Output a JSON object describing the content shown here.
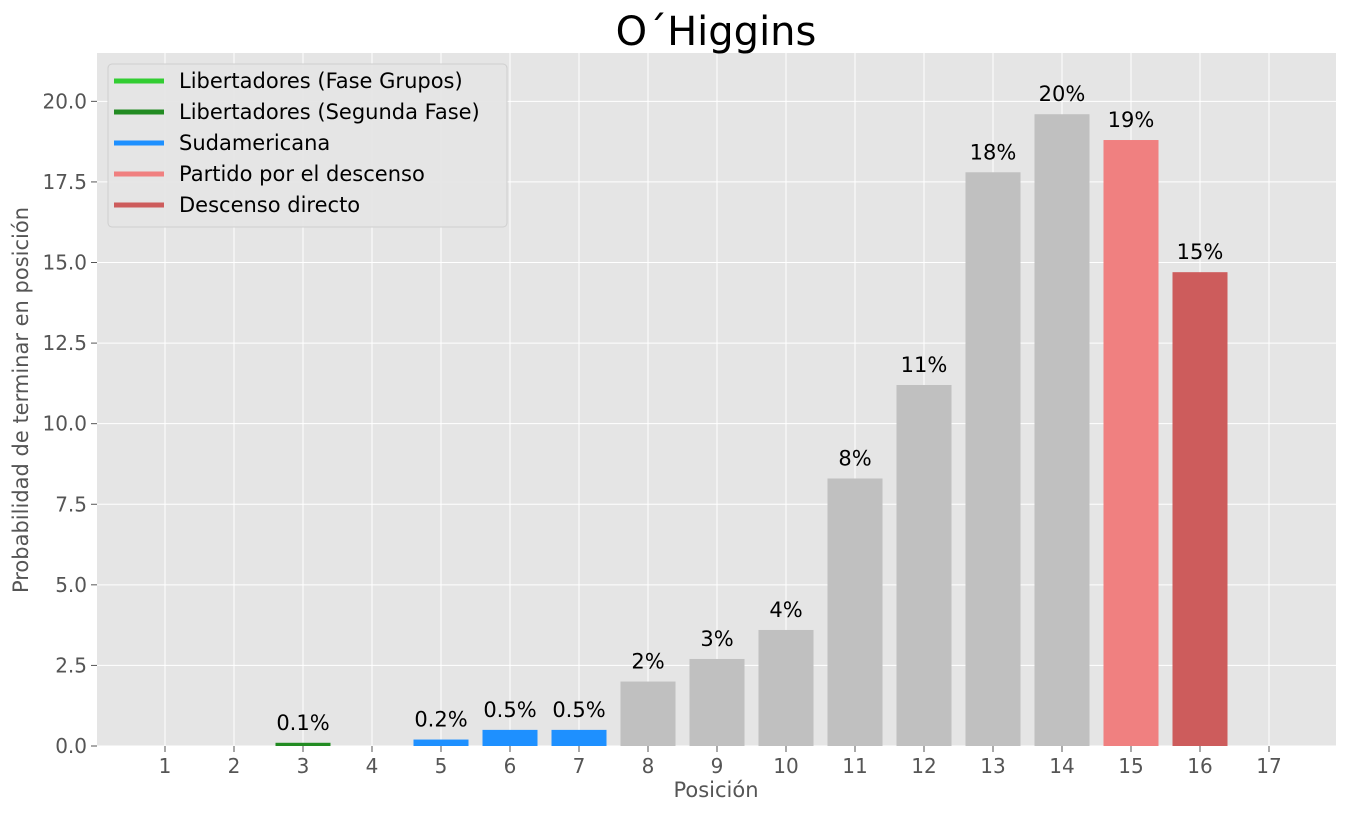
{
  "chart_data": {
    "type": "bar",
    "title": "O´Higgins",
    "xlabel": "Posición",
    "ylabel": "Probabilidad de terminar en posición",
    "categories": [
      "1",
      "2",
      "3",
      "4",
      "5",
      "6",
      "7",
      "8",
      "9",
      "10",
      "11",
      "12",
      "13",
      "14",
      "15",
      "16",
      "17"
    ],
    "values": [
      0,
      0,
      0.1,
      0,
      0.2,
      0.5,
      0.5,
      2.0,
      2.7,
      3.6,
      8.3,
      11.2,
      17.8,
      19.6,
      18.8,
      14.7,
      0
    ],
    "bar_labels": [
      "",
      "",
      "0.1%",
      "",
      "0.2%",
      "0.5%",
      "0.5%",
      "2%",
      "3%",
      "4%",
      "8%",
      "11%",
      "18%",
      "20%",
      "19%",
      "15%",
      ""
    ],
    "bar_colors": [
      "#228B22",
      "#228B22",
      "#228B22",
      "#1E90FF",
      "#1E90FF",
      "#1E90FF",
      "#1E90FF",
      "#C0C0C0",
      "#C0C0C0",
      "#C0C0C0",
      "#C0C0C0",
      "#C0C0C0",
      "#C0C0C0",
      "#C0C0C0",
      "#F08080",
      "#CD5C5C",
      "#C0C0C0"
    ],
    "ylim": [
      0,
      21.5
    ],
    "yticks": [
      "0.0",
      "2.5",
      "5.0",
      "7.5",
      "10.0",
      "12.5",
      "15.0",
      "17.5",
      "20.0"
    ],
    "ytick_values": [
      0,
      2.5,
      5,
      7.5,
      10,
      12.5,
      15,
      17.5,
      20
    ],
    "grid": true,
    "legend_position": "top-left",
    "legend": [
      {
        "label": "Libertadores (Fase Grupos)",
        "color": "#32CD32"
      },
      {
        "label": "Libertadores (Segunda Fase)",
        "color": "#228B22"
      },
      {
        "label": "Sudamericana",
        "color": "#1E90FF"
      },
      {
        "label": "Partido por el descenso",
        "color": "#F08080"
      },
      {
        "label": "Descenso directo",
        "color": "#CD5C5C"
      }
    ],
    "background_color": "#E5E5E5"
  }
}
